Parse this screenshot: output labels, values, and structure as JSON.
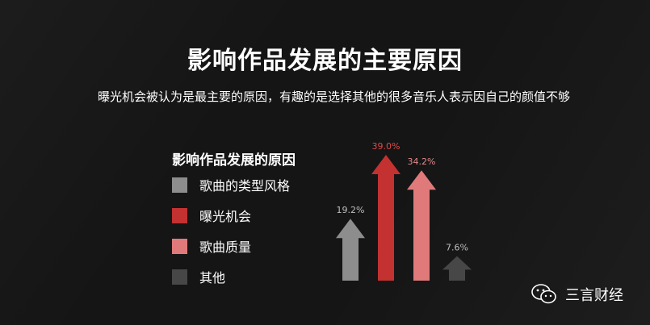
{
  "title": "影响作品发展的主要原因",
  "subtitle": "曝光机会被认为是最主要的原因，有趣的是选择其他的很多音乐人表示因自己的颜值不够",
  "watermark": {
    "text": "三言财经",
    "icon": "wechat-icon"
  },
  "chart_data": {
    "type": "bar",
    "title": "影响作品发展的原因",
    "categories": [
      "歌曲的类型风格",
      "曝光机会",
      "歌曲质量",
      "其他"
    ],
    "values": [
      19.2,
      39.0,
      34.2,
      7.6
    ],
    "value_labels": [
      "19.2%",
      "39.0%",
      "34.2%",
      "7.6%"
    ],
    "colors": [
      "#8d8d8d",
      "#c43131",
      "#e07a7a",
      "#474747"
    ],
    "label_colors": [
      "#bfbfbf",
      "#e04a4a",
      "#e38a8a",
      "#bfbfbf"
    ],
    "legend_position": "left",
    "grid": false,
    "ylim": [
      0,
      40
    ]
  }
}
